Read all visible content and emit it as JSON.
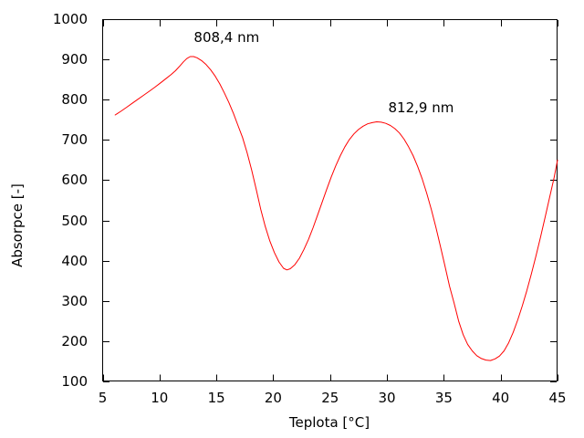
{
  "chart_data": {
    "type": "line",
    "title": "",
    "xlabel": "Teplota [°C]",
    "ylabel": "Absorpce [-]",
    "xlim": [
      5,
      45
    ],
    "ylim": [
      100,
      1000
    ],
    "x_ticks": [
      5,
      10,
      15,
      20,
      25,
      30,
      35,
      40,
      45
    ],
    "y_ticks": [
      100,
      200,
      300,
      400,
      500,
      600,
      700,
      800,
      900,
      1000
    ],
    "grid": false,
    "legend": "none",
    "tick_style": "inward, mirrored on top and right borders",
    "axis_color": "#000000",
    "background_color": "#ffffff",
    "annotations": [
      {
        "text": "808,4 nm",
        "x": 15.9,
        "y": 955
      },
      {
        "text": "812,9 nm",
        "x": 33.0,
        "y": 780
      }
    ],
    "notable_points": {
      "start": [
        6.1,
        762
      ],
      "peak1": [
        12.7,
        908
      ],
      "min1": [
        21.0,
        377
      ],
      "peak2": [
        29.1,
        745
      ],
      "min2": [
        38.9,
        152
      ],
      "end": [
        45.0,
        650
      ]
    },
    "series": [
      {
        "name": "Absorpce",
        "color": "#ff0000",
        "points": [
          [
            6.1,
            762
          ],
          [
            6.6,
            771
          ],
          [
            7.1,
            781
          ],
          [
            7.6,
            791
          ],
          [
            8.1,
            801
          ],
          [
            8.6,
            811
          ],
          [
            9.1,
            821
          ],
          [
            9.6,
            831
          ],
          [
            10.1,
            842
          ],
          [
            10.6,
            853
          ],
          [
            11.0,
            862
          ],
          [
            11.4,
            872
          ],
          [
            11.8,
            884
          ],
          [
            12.1,
            894
          ],
          [
            12.4,
            902
          ],
          [
            12.7,
            907
          ],
          [
            13.0,
            907
          ],
          [
            13.3,
            904
          ],
          [
            13.7,
            897
          ],
          [
            14.1,
            887
          ],
          [
            14.5,
            874
          ],
          [
            14.9,
            858
          ],
          [
            15.3,
            839
          ],
          [
            15.7,
            817
          ],
          [
            16.1,
            793
          ],
          [
            16.5,
            766
          ],
          [
            16.9,
            736
          ],
          [
            17.3,
            706
          ],
          [
            17.7,
            668
          ],
          [
            18.1,
            625
          ],
          [
            18.5,
            578
          ],
          [
            18.9,
            528
          ],
          [
            19.3,
            485
          ],
          [
            19.7,
            449
          ],
          [
            20.1,
            420
          ],
          [
            20.5,
            397
          ],
          [
            20.9,
            381
          ],
          [
            21.2,
            377
          ],
          [
            21.5,
            380
          ],
          [
            21.9,
            390
          ],
          [
            22.3,
            406
          ],
          [
            22.7,
            428
          ],
          [
            23.1,
            453
          ],
          [
            23.5,
            482
          ],
          [
            23.9,
            513
          ],
          [
            24.3,
            545
          ],
          [
            24.7,
            577
          ],
          [
            25.1,
            608
          ],
          [
            25.5,
            636
          ],
          [
            25.9,
            661
          ],
          [
            26.3,
            683
          ],
          [
            26.7,
            701
          ],
          [
            27.1,
            715
          ],
          [
            27.5,
            726
          ],
          [
            27.9,
            734
          ],
          [
            28.3,
            740
          ],
          [
            28.7,
            743
          ],
          [
            29.1,
            745
          ],
          [
            29.5,
            744
          ],
          [
            29.9,
            741
          ],
          [
            30.3,
            736
          ],
          [
            30.7,
            728
          ],
          [
            31.1,
            717
          ],
          [
            31.5,
            702
          ],
          [
            31.9,
            683
          ],
          [
            32.3,
            661
          ],
          [
            32.7,
            634
          ],
          [
            33.1,
            603
          ],
          [
            33.5,
            567
          ],
          [
            33.9,
            527
          ],
          [
            34.3,
            483
          ],
          [
            34.7,
            436
          ],
          [
            35.1,
            387
          ],
          [
            35.5,
            337
          ],
          [
            35.9,
            295
          ],
          [
            36.3,
            250
          ],
          [
            36.7,
            216
          ],
          [
            37.1,
            192
          ],
          [
            37.5,
            176
          ],
          [
            37.9,
            164
          ],
          [
            38.3,
            157
          ],
          [
            38.7,
            153
          ],
          [
            39.1,
            152
          ],
          [
            39.5,
            156
          ],
          [
            39.9,
            163
          ],
          [
            40.3,
            176
          ],
          [
            40.7,
            196
          ],
          [
            41.1,
            222
          ],
          [
            41.5,
            253
          ],
          [
            41.9,
            288
          ],
          [
            42.3,
            326
          ],
          [
            42.7,
            367
          ],
          [
            43.1,
            411
          ],
          [
            43.5,
            458
          ],
          [
            43.9,
            507
          ],
          [
            44.3,
            557
          ],
          [
            44.7,
            607
          ],
          [
            45.0,
            650
          ]
        ]
      }
    ]
  }
}
